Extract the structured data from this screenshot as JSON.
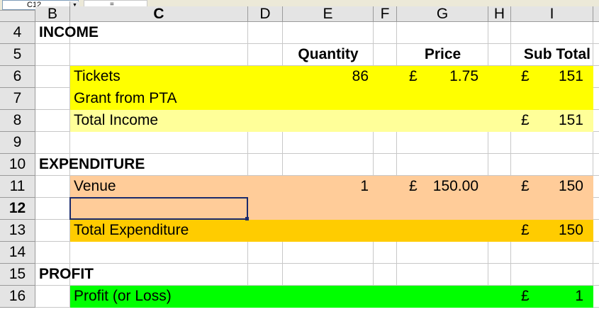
{
  "formula_bar": {
    "name_box": "C12",
    "equals": "="
  },
  "columns": [
    "B",
    "C",
    "D",
    "E",
    "F",
    "G",
    "H",
    "I"
  ],
  "rows": [
    "4",
    "5",
    "6",
    "7",
    "8",
    "9",
    "10",
    "11",
    "12",
    "13",
    "14",
    "15",
    "16"
  ],
  "selected_row": "12",
  "colors": {
    "yellow": "#ffff00",
    "light_yellow": "#ffff99",
    "peach": "#ffcc99",
    "orange": "#ffcc00",
    "green": "#00ff00"
  },
  "cells": {
    "income": "INCOME",
    "quantity": "Quantity",
    "price": "Price",
    "sub_total": "Sub Total",
    "tickets": "Tickets",
    "tickets_qty": "86",
    "tickets_price_cur": "£",
    "tickets_price": "1.75",
    "tickets_sub_cur": "£",
    "tickets_sub": "151",
    "grant": "Grant from PTA",
    "total_income": "Total Income",
    "total_income_cur": "£",
    "total_income_val": "151",
    "expenditure": "EXPENDITURE",
    "venue": "Venue",
    "venue_qty": "1",
    "venue_price_cur": "£",
    "venue_price": "150.00",
    "venue_sub_cur": "£",
    "venue_sub": "150",
    "total_exp": "Total Expenditure",
    "total_exp_cur": "£",
    "total_exp_val": "150",
    "profit": "PROFIT",
    "profit_loss": "Profit (or Loss)",
    "profit_cur": "£",
    "profit_val": "1"
  }
}
